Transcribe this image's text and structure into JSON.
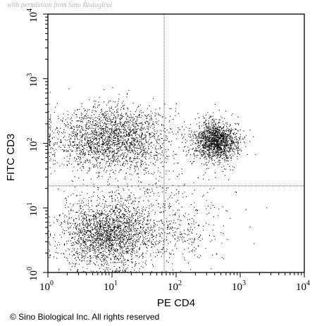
{
  "watermark": "with permission from Sino Biological",
  "copyright": "© Sino Biological Inc. All rights reserved",
  "colors": {
    "points": "#000000",
    "frame": "#000000",
    "gate": "#555555",
    "watermark": "#b8b8b8"
  },
  "chart_data": {
    "type": "scatter",
    "title": "",
    "xlabel": "PE CD4",
    "ylabel": "FITC CD3",
    "x_scale": "log",
    "y_scale": "log",
    "xlim": [
      1,
      10000
    ],
    "ylim": [
      1,
      10000
    ],
    "x_ticks": [
      {
        "value": 1,
        "base": "10",
        "exp": "0"
      },
      {
        "value": 10,
        "base": "10",
        "exp": "1"
      },
      {
        "value": 100,
        "base": "10",
        "exp": "2"
      },
      {
        "value": 1000,
        "base": "10",
        "exp": "3"
      },
      {
        "value": 10000,
        "base": "10",
        "exp": "4"
      }
    ],
    "y_ticks": [
      {
        "value": 1,
        "base": "10",
        "exp": "0"
      },
      {
        "value": 10,
        "base": "10",
        "exp": "1"
      },
      {
        "value": 100,
        "base": "10",
        "exp": "2"
      },
      {
        "value": 1000,
        "base": "10",
        "exp": "3"
      },
      {
        "value": 10000,
        "base": "10",
        "exp": "4"
      }
    ],
    "quadrant_gates": {
      "x": 65,
      "y": 22
    },
    "grid": false,
    "legend": "none",
    "populations": [
      {
        "center": [
          9,
          4
        ],
        "spread_log": [
          0.38,
          0.28
        ],
        "count": 2200
      },
      {
        "center": [
          10,
          120
        ],
        "spread_log": [
          0.45,
          0.25
        ],
        "count": 2100
      },
      {
        "center": [
          420,
          110
        ],
        "spread_log": [
          0.17,
          0.15
        ],
        "count": 1500
      },
      {
        "center": [
          130,
          4
        ],
        "spread_log": [
          0.3,
          0.3
        ],
        "count": 220
      },
      {
        "center": [
          45,
          25
        ],
        "spread_log": [
          0.55,
          0.45
        ],
        "count": 280
      }
    ]
  }
}
